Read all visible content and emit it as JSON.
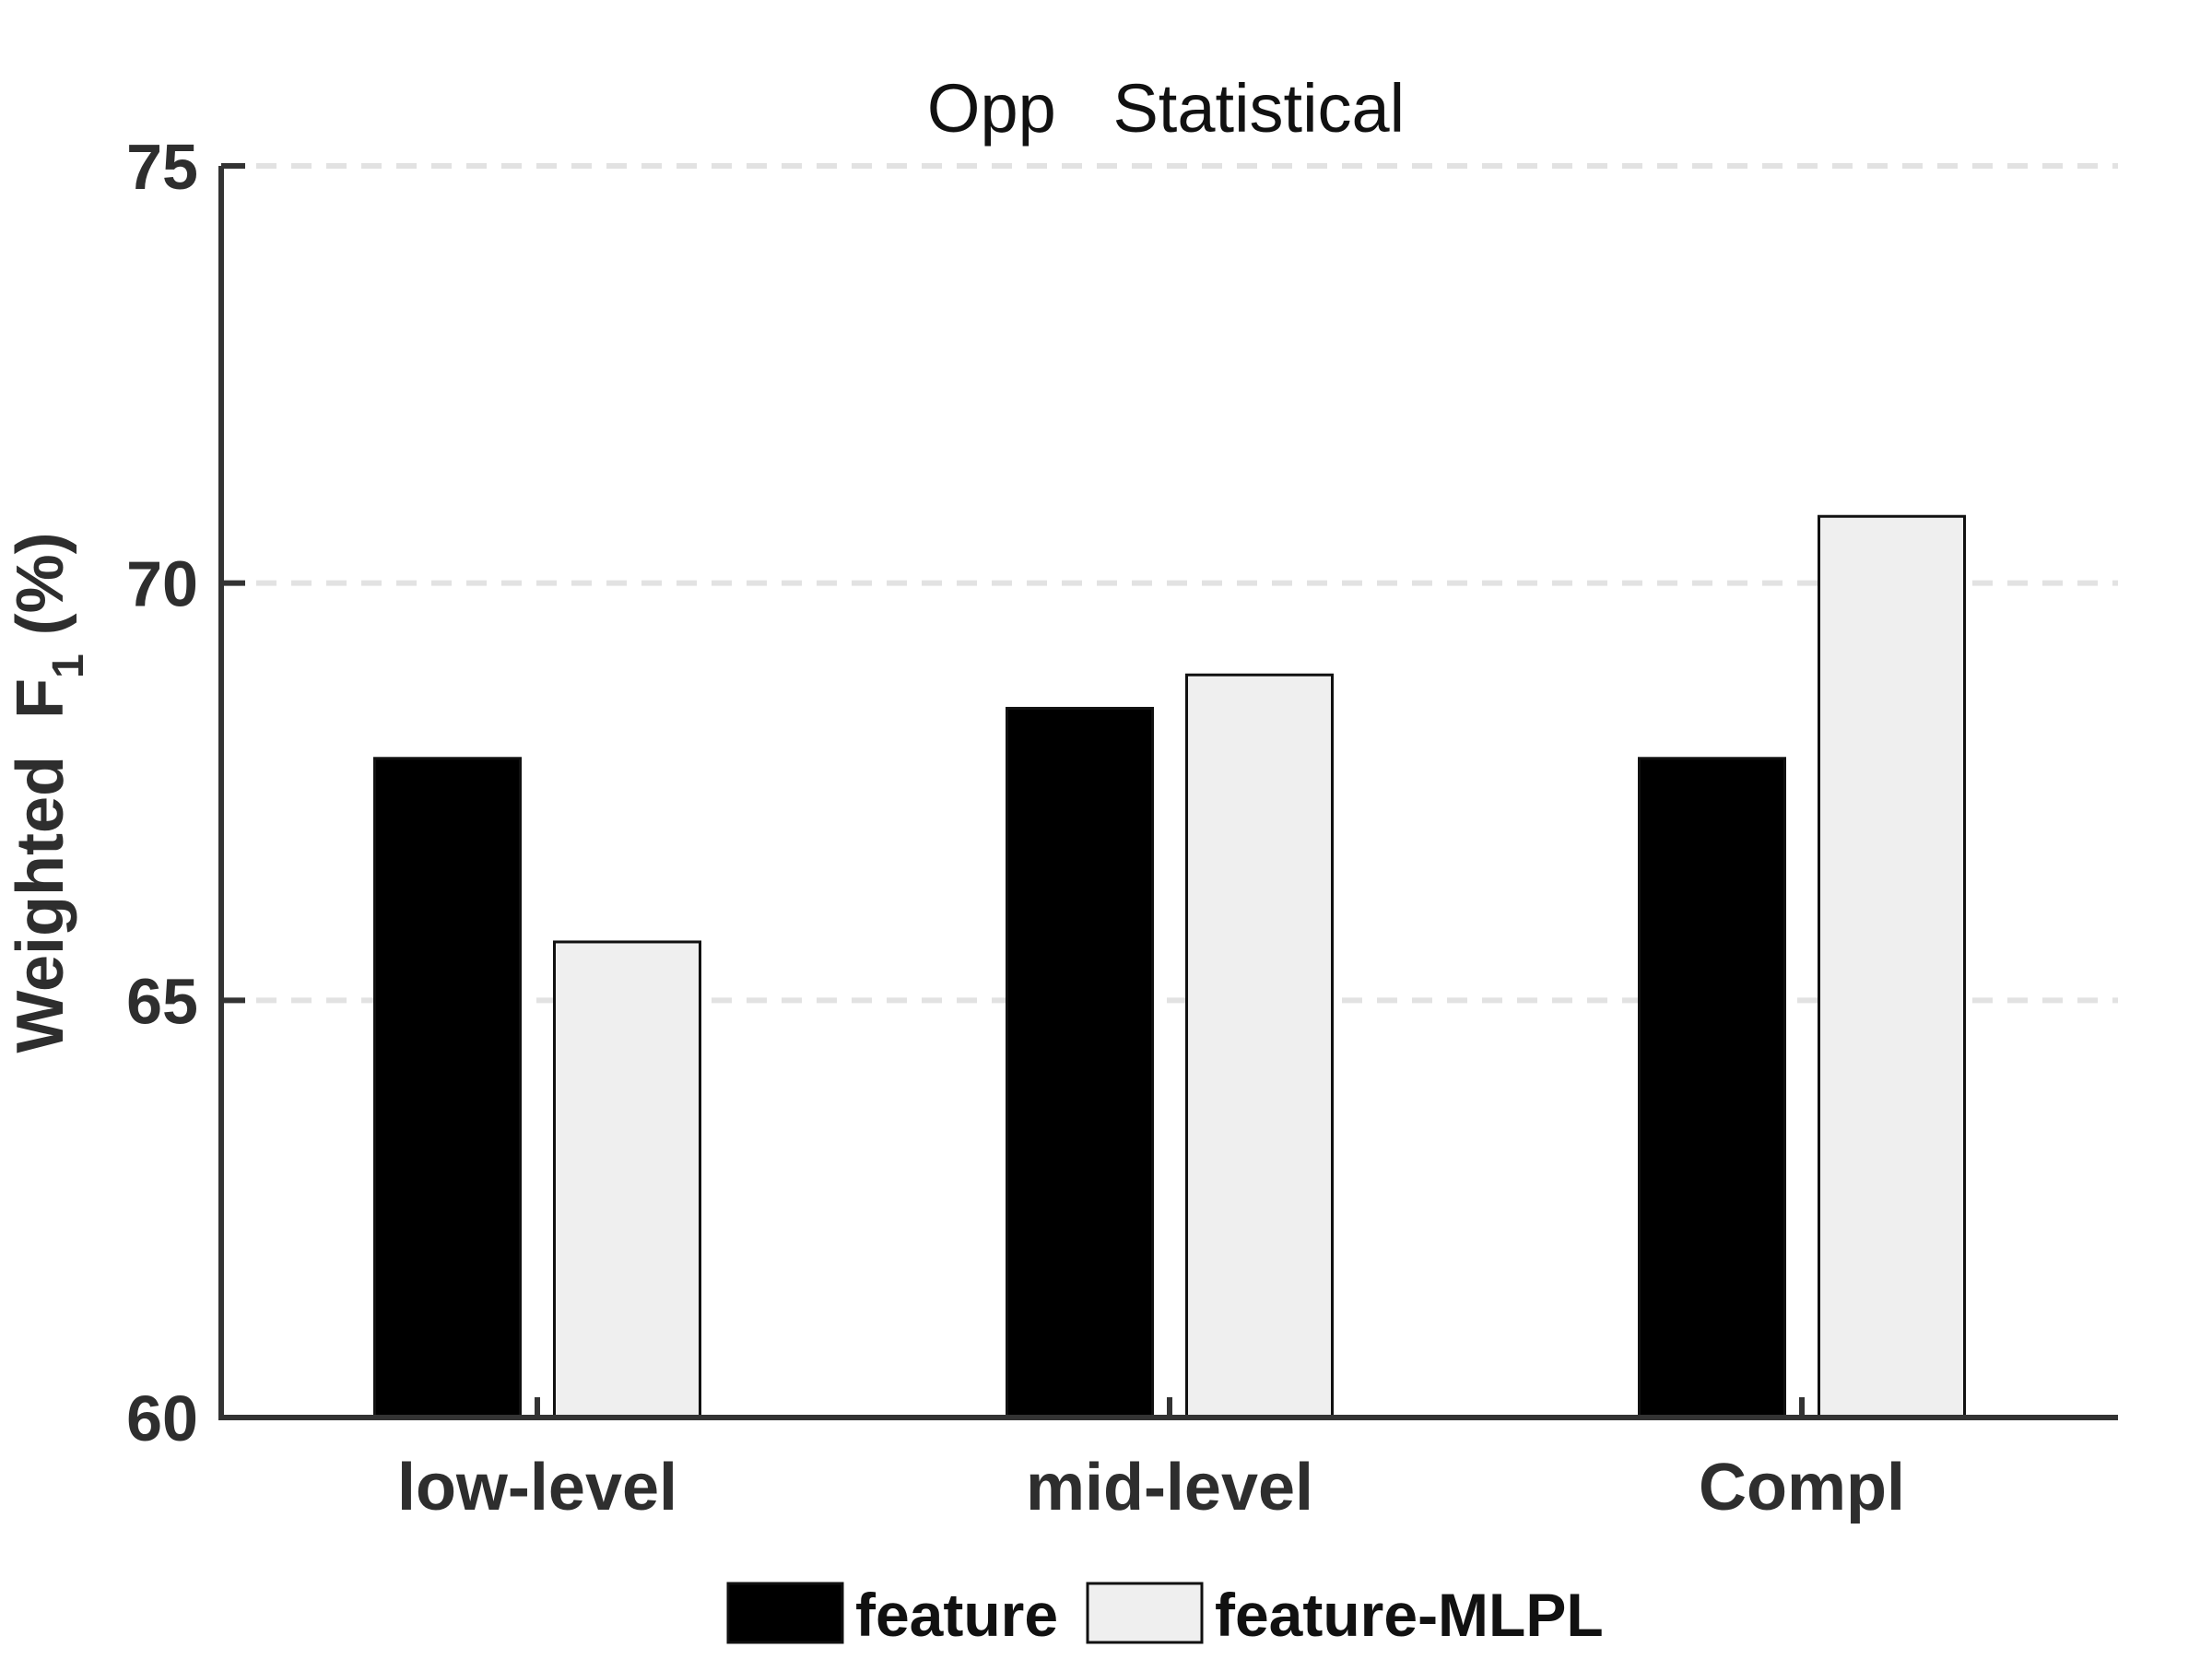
{
  "chart_data": {
    "type": "bar",
    "title": "Opp   Statistical",
    "ylabel": "Weighted  F",
    "ylabel_subscript": "1",
    "ylabel_suffix": "(%)",
    "categories": [
      "low-level",
      "mid-level",
      "Compl"
    ],
    "series": [
      {
        "name": "feature",
        "values": [
          67.9,
          68.5,
          67.9
        ],
        "color": "#000000"
      },
      {
        "name": "feature-MLPL",
        "values": [
          65.7,
          68.9,
          70.8
        ],
        "color": "#efefef"
      }
    ],
    "ylim": [
      60,
      75
    ],
    "yticks": [
      60,
      65,
      70,
      75
    ],
    "grid": "horizontal-dashed",
    "legend": "bottom-center"
  }
}
